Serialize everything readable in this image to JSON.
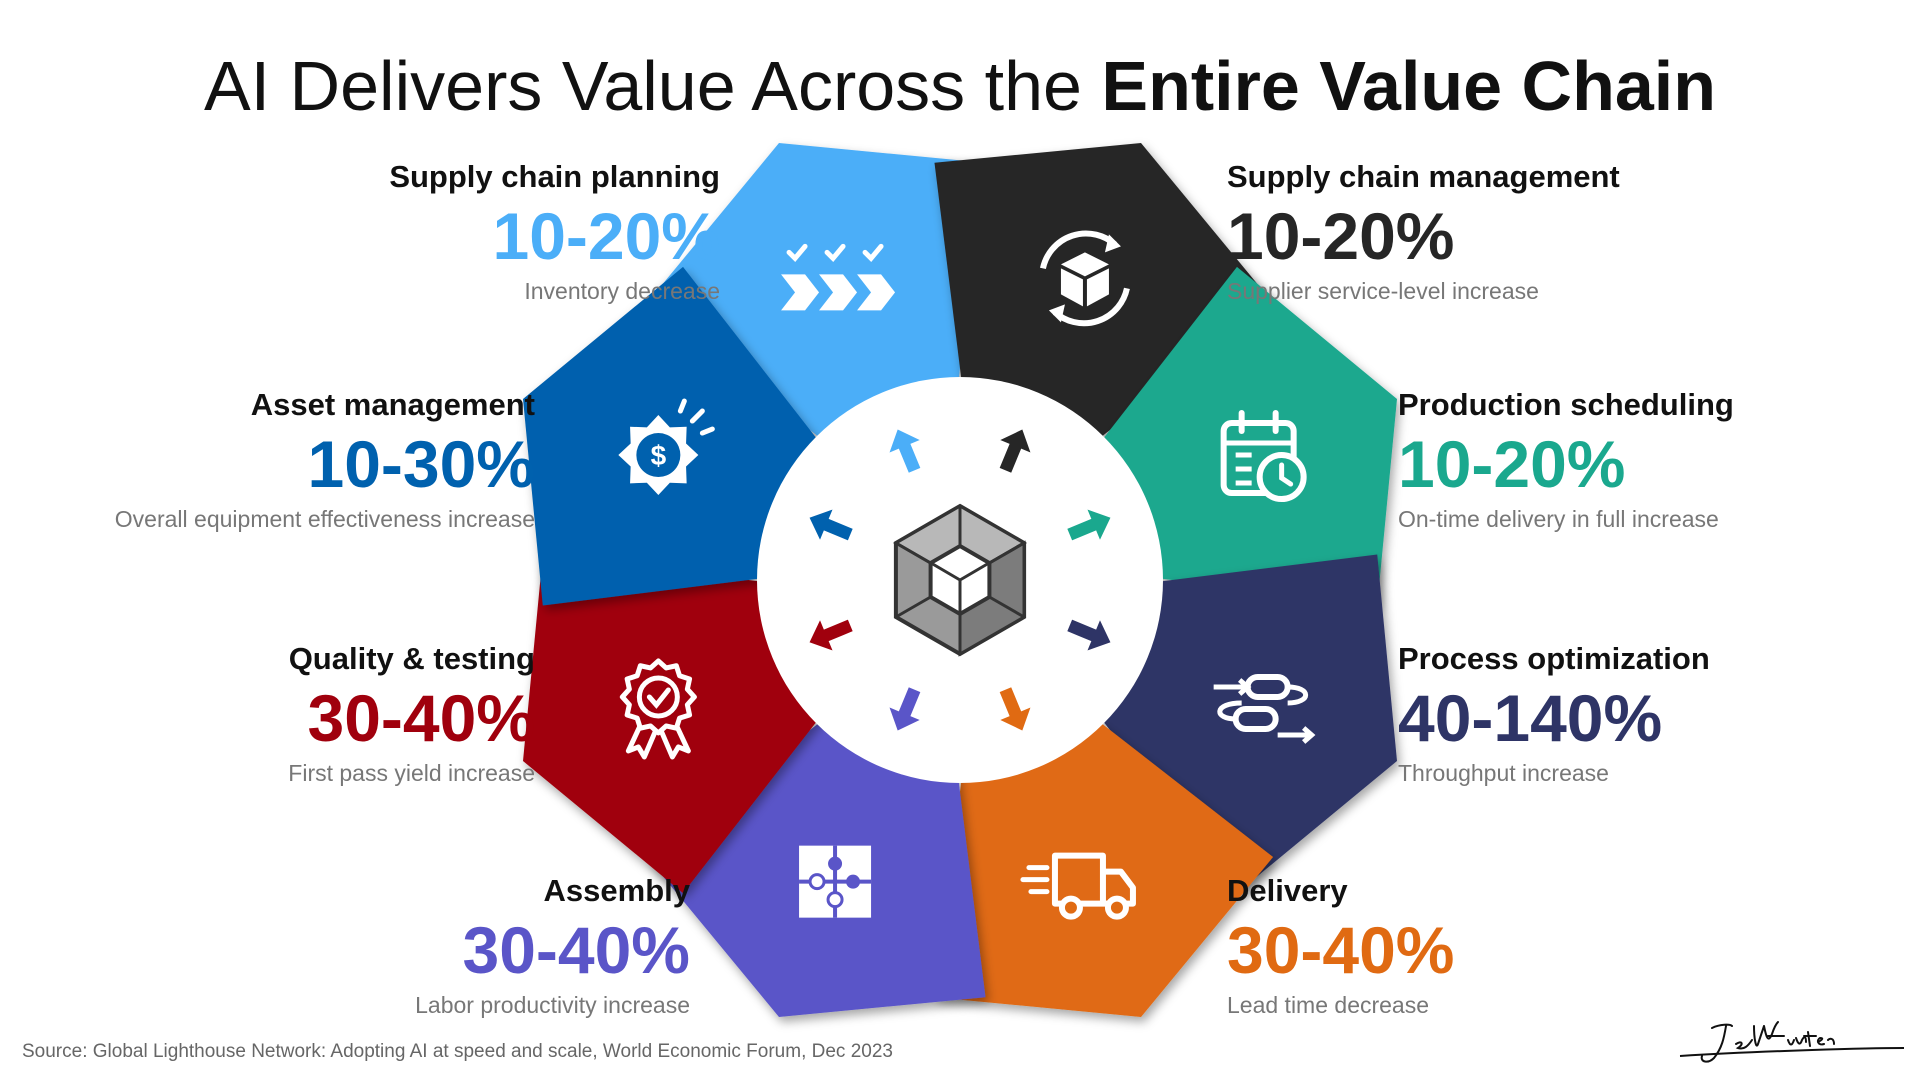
{
  "title": {
    "regular": "AI Delivers Value Across the ",
    "bold": "Entire Value Chain"
  },
  "segments": [
    {
      "id": "supply-chain-planning",
      "name": "Supply chain planning",
      "value": "10-20%",
      "description": "Inventory decrease",
      "color": "#4BAEF8",
      "icon": "checklist-arrows-icon"
    },
    {
      "id": "supply-chain-management",
      "name": "Supply chain management",
      "value": "10-20%",
      "description": "Supplier service-level increase",
      "color": "#262626",
      "icon": "box-cycle-icon"
    },
    {
      "id": "production-scheduling",
      "name": "Production scheduling",
      "value": "10-20%",
      "description": "On-time delivery in full increase",
      "color": "#1AA88E",
      "icon": "calendar-clock-icon"
    },
    {
      "id": "process-optimization",
      "name": "Process optimization",
      "value": "40-140%",
      "description": "Throughput increase",
      "color": "#2E3466",
      "icon": "process-flow-icon"
    },
    {
      "id": "delivery",
      "name": "Delivery",
      "value": "30-40%",
      "description": "Lead time decrease",
      "color": "#E06A12",
      "icon": "delivery-truck-icon"
    },
    {
      "id": "assembly",
      "name": "Assembly",
      "value": "30-40%",
      "description": "Labor productivity increase",
      "color": "#5A55C8",
      "icon": "puzzle-icon"
    },
    {
      "id": "quality-testing",
      "name": "Quality & testing",
      "value": "30-40%",
      "description": "First pass yield increase",
      "color": "#A0000D",
      "icon": "quality-badge-icon"
    },
    {
      "id": "asset-management",
      "name": "Asset management",
      "value": "10-30%",
      "description": "Overall equipment effectiveness increase",
      "color": "#0061AE",
      "icon": "gear-dollar-icon"
    }
  ],
  "center_icon": "cube-icon",
  "source": "Source: Global Lighthouse Network: Adopting AI at speed and scale, World Economic Forum, Dec 2023",
  "signature": "Jeff Winter"
}
